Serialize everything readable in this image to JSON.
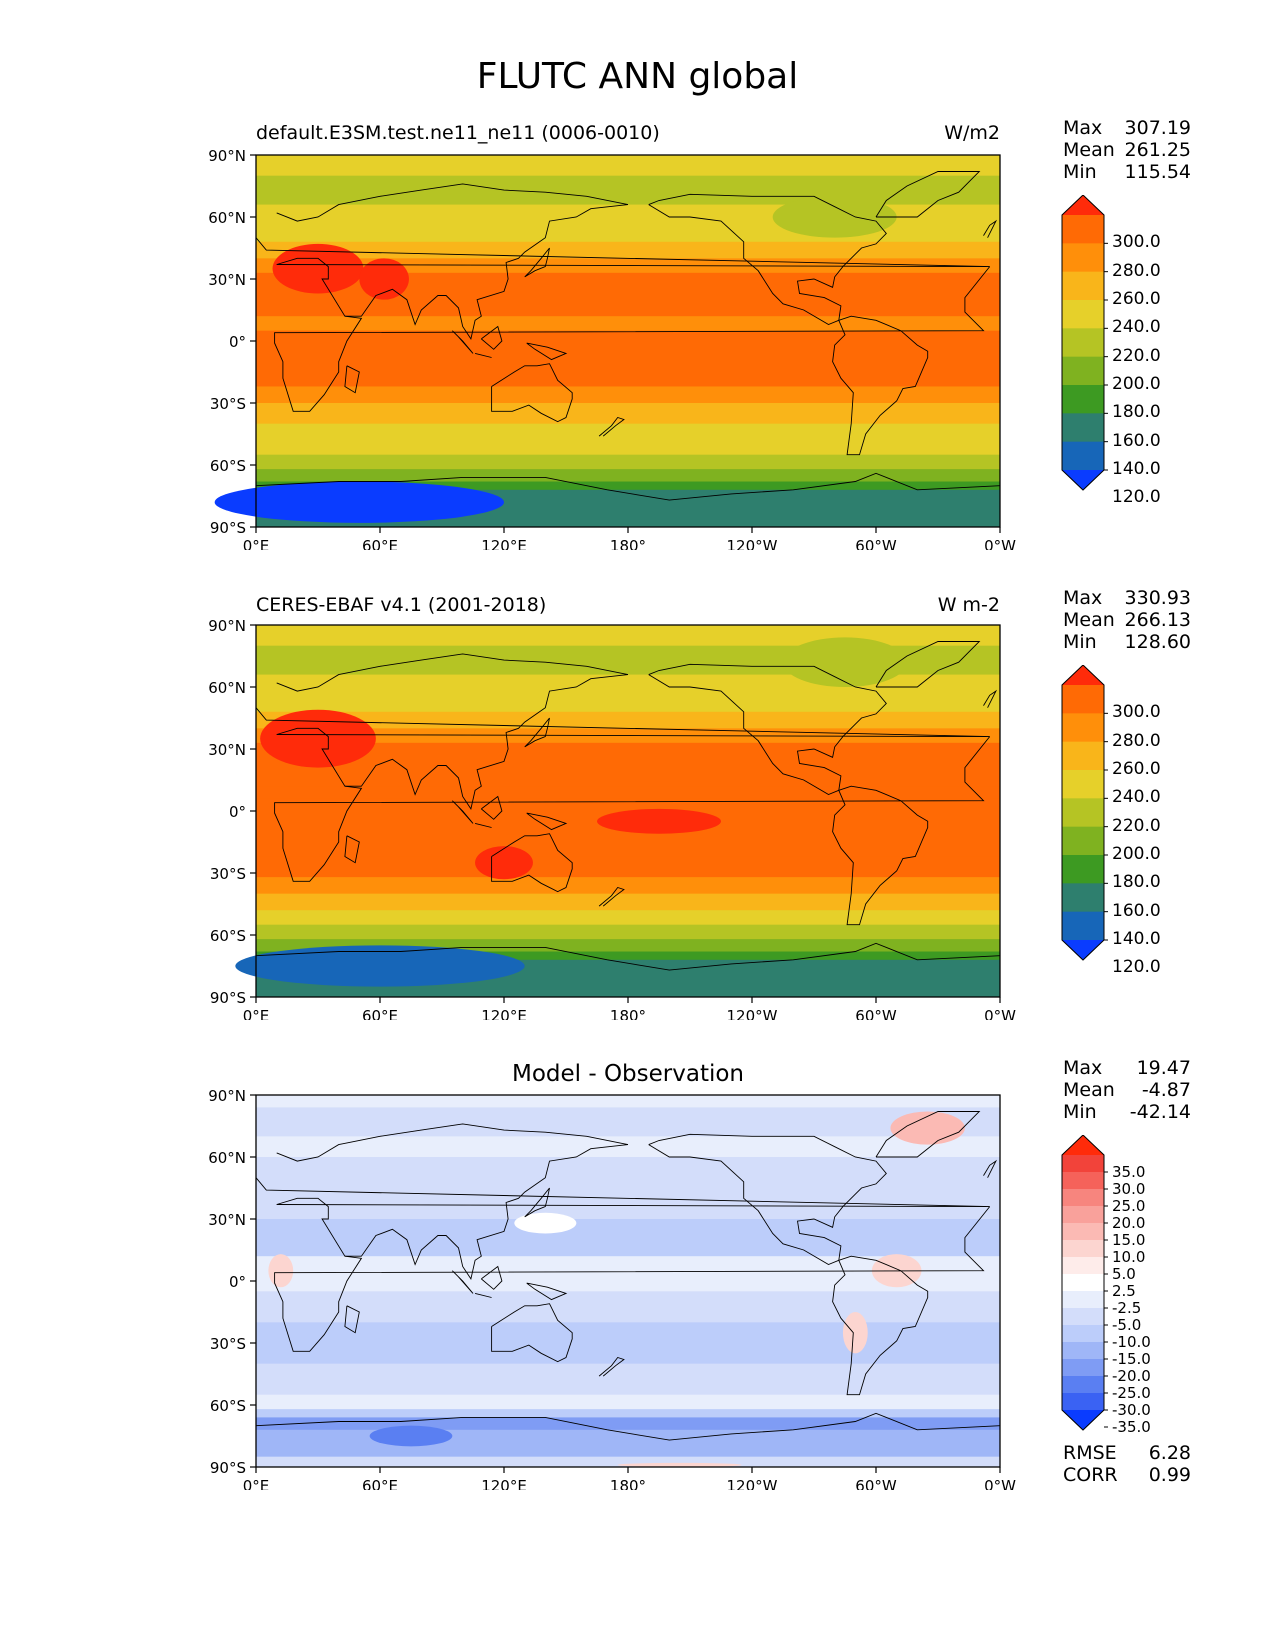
{
  "figure": {
    "title": "FLUTC ANN global"
  },
  "axes": {
    "lat_ticks": [
      "90°N",
      "60°N",
      "30°N",
      "0°",
      "30°S",
      "60°S",
      "90°S"
    ],
    "lon_ticks": [
      "0°E",
      "60°E",
      "120°E",
      "180°",
      "120°W",
      "60°W",
      "0°W"
    ]
  },
  "panels": [
    {
      "left_title": "default.E3SM.test.ne11_ne11 (0006-0010)",
      "center_title": "",
      "right_title": "W/m2",
      "stats": [
        {
          "label": "Max",
          "value": "307.19"
        },
        {
          "label": "Mean",
          "value": "261.25"
        },
        {
          "label": "Min",
          "value": "115.54"
        }
      ]
    },
    {
      "left_title": "CERES-EBAF v4.1 (2001-2018)",
      "center_title": "",
      "right_title": "W m-2",
      "stats": [
        {
          "label": "Max",
          "value": "330.93"
        },
        {
          "label": "Mean",
          "value": "266.13"
        },
        {
          "label": "Min",
          "value": "128.60"
        }
      ]
    },
    {
      "left_title": "",
      "center_title": "Model - Observation",
      "right_title": "",
      "stats": [
        {
          "label": "Max",
          "value": "19.47"
        },
        {
          "label": "Mean",
          "value": "-4.87"
        },
        {
          "label": "Min",
          "value": "-42.14"
        }
      ]
    }
  ],
  "colorbar_abs": {
    "labels": [
      "300.0",
      "280.0",
      "260.0",
      "240.0",
      "220.0",
      "200.0",
      "180.0",
      "160.0",
      "140.0",
      "120.0"
    ],
    "colors": [
      "#ff2b0a",
      "#ff6a05",
      "#ff8f0a",
      "#f9b51a",
      "#e6d02a",
      "#b5c424",
      "#7fb220",
      "#3d9a22",
      "#2e7f6e",
      "#1766b8",
      "#0a3cff"
    ]
  },
  "colorbar_diff": {
    "labels": [
      "35.0",
      "30.0",
      "25.0",
      "20.0",
      "15.0",
      "10.0",
      "5.0",
      "2.5",
      "-2.5",
      "-5.0",
      "-10.0",
      "-15.0",
      "-20.0",
      "-25.0",
      "-30.0",
      "-35.0"
    ],
    "colors": [
      "#ff2b0a",
      "#f2433a",
      "#f5625a",
      "#f7857e",
      "#f9a19b",
      "#fbbab4",
      "#fcd5d0",
      "#feecea",
      "#ffffff",
      "#e8eefc",
      "#d3ddfa",
      "#bccdfa",
      "#9fb6f7",
      "#7f9cf4",
      "#5a7ff2",
      "#3a62f3",
      "#0a3cff"
    ]
  },
  "metrics": [
    {
      "label": "RMSE",
      "value": "6.28"
    },
    {
      "label": "CORR",
      "value": "0.99"
    }
  ],
  "map_colors": {
    "abs_palette": [
      "#0a3cff",
      "#1766b8",
      "#2e7f6e",
      "#3d9a22",
      "#7fb220",
      "#b5c424",
      "#e6d02a",
      "#f9b51a",
      "#ff8f0a",
      "#ff6a05",
      "#ff2b0a"
    ],
    "coastline": "#000000"
  }
}
